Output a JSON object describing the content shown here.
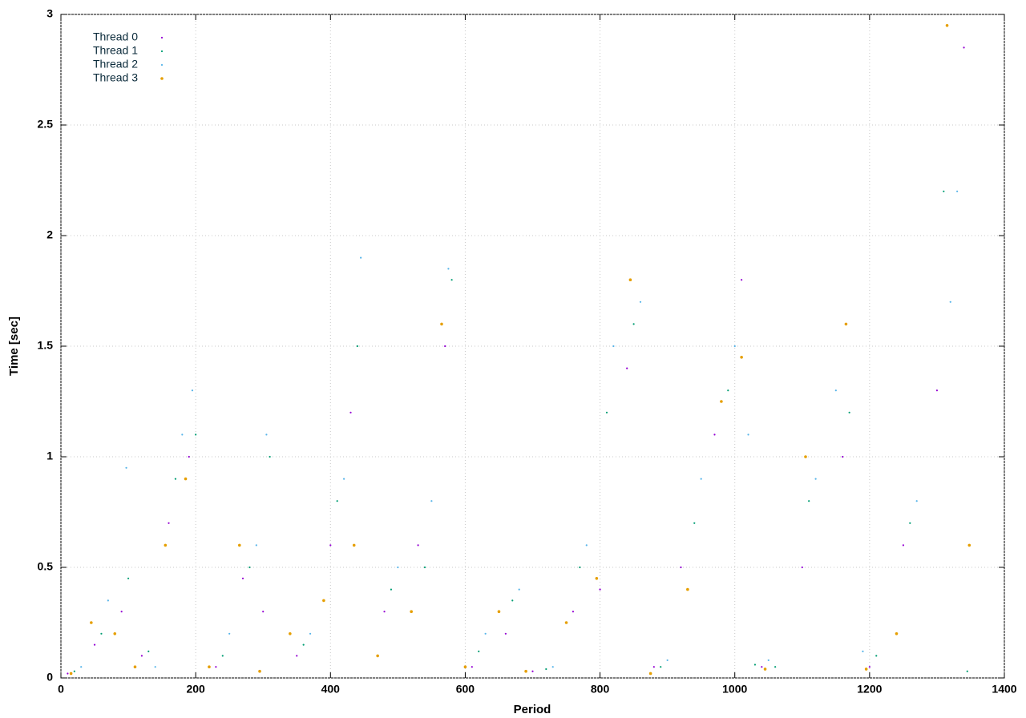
{
  "chart_data": {
    "type": "scatter",
    "xlabel": "Period",
    "ylabel": "Time [sec]",
    "xlim": [
      0,
      1400
    ],
    "ylim": [
      0,
      3
    ],
    "xticks": [
      0,
      200,
      400,
      600,
      800,
      1000,
      1200,
      1400
    ],
    "yticks": [
      0,
      0.5,
      1,
      1.5,
      2,
      2.5,
      3
    ],
    "grid": true,
    "legend": "upper left",
    "series": [
      {
        "name": "Thread 0",
        "color": "#9400d3",
        "x": [
          10,
          50,
          90,
          120,
          160,
          190,
          230,
          270,
          300,
          350,
          400,
          430,
          480,
          530,
          570,
          610,
          660,
          700,
          760,
          800,
          840,
          880,
          920,
          970,
          1010,
          1040,
          1100,
          1160,
          1200,
          1250,
          1300,
          1340
        ],
        "values": [
          0.02,
          0.15,
          0.3,
          0.1,
          0.7,
          1.0,
          0.05,
          0.45,
          0.3,
          0.1,
          0.6,
          1.2,
          0.3,
          0.6,
          1.5,
          0.05,
          0.2,
          0.03,
          0.3,
          0.4,
          1.4,
          0.05,
          0.5,
          1.1,
          1.8,
          0.05,
          0.5,
          1.0,
          0.05,
          0.6,
          1.3,
          2.85
        ]
      },
      {
        "name": "Thread 1",
        "color": "#009e73",
        "x": [
          20,
          60,
          100,
          130,
          170,
          200,
          240,
          280,
          310,
          360,
          410,
          440,
          490,
          540,
          580,
          620,
          670,
          720,
          770,
          810,
          850,
          890,
          940,
          990,
          1030,
          1060,
          1110,
          1170,
          1210,
          1260,
          1310,
          1345
        ],
        "values": [
          0.03,
          0.2,
          0.45,
          0.12,
          0.9,
          1.1,
          0.1,
          0.5,
          1.0,
          0.15,
          0.8,
          1.5,
          0.4,
          0.5,
          1.8,
          0.12,
          0.35,
          0.04,
          0.5,
          1.2,
          1.6,
          0.05,
          0.7,
          1.3,
          0.06,
          0.05,
          0.8,
          1.2,
          0.1,
          0.7,
          2.2,
          0.03
        ]
      },
      {
        "name": "Thread 2",
        "color": "#56b4e9",
        "x": [
          30,
          70,
          97,
          140,
          180,
          195,
          250,
          290,
          305,
          370,
          420,
          445,
          500,
          550,
          575,
          630,
          680,
          730,
          780,
          820,
          860,
          900,
          950,
          1000,
          1020,
          1050,
          1120,
          1150,
          1190,
          1270,
          1320,
          1330
        ],
        "values": [
          0.05,
          0.35,
          0.95,
          0.05,
          1.1,
          1.3,
          0.2,
          0.6,
          1.1,
          0.2,
          0.9,
          1.9,
          0.5,
          0.8,
          1.85,
          0.2,
          0.4,
          0.05,
          0.6,
          1.5,
          1.7,
          0.08,
          0.9,
          1.5,
          1.1,
          0.08,
          0.9,
          1.3,
          0.12,
          0.8,
          1.7,
          2.2
        ]
      },
      {
        "name": "Thread 3",
        "color": "#e69f00",
        "x": [
          15,
          45,
          80,
          110,
          155,
          185,
          220,
          265,
          295,
          340,
          390,
          435,
          470,
          520,
          565,
          600,
          650,
          690,
          750,
          795,
          845,
          875,
          930,
          980,
          1010,
          1045,
          1105,
          1165,
          1195,
          1240,
          1315,
          1348
        ],
        "values": [
          0.02,
          0.25,
          0.2,
          0.05,
          0.6,
          0.9,
          0.05,
          0.6,
          0.03,
          0.2,
          0.35,
          0.6,
          0.1,
          0.3,
          1.6,
          0.05,
          0.3,
          0.03,
          0.25,
          0.45,
          1.8,
          0.02,
          0.4,
          1.25,
          1.45,
          0.04,
          1.0,
          1.6,
          0.04,
          0.2,
          2.95,
          0.6
        ]
      }
    ]
  }
}
